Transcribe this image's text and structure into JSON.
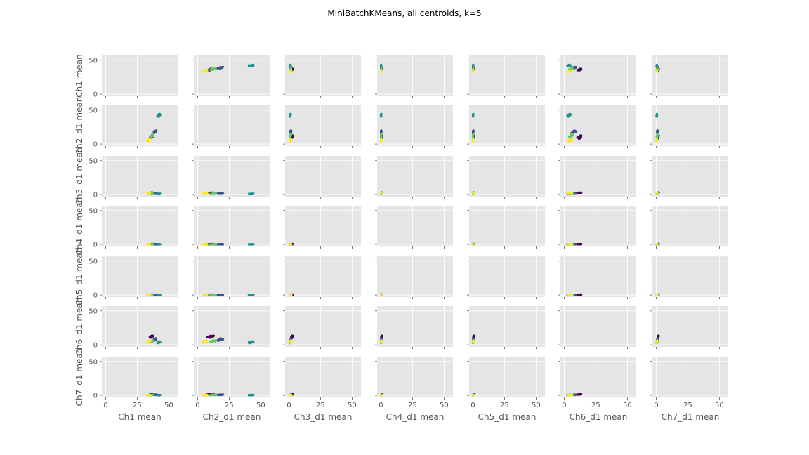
{
  "chart_data": {
    "type": "scatter",
    "layout": "pair-grid",
    "title": "MiniBatchKMeans, all centroids, k=5",
    "variables": [
      "Ch1 mean",
      "Ch2_d1 mean",
      "Ch3_d1 mean",
      "Ch4_d1 mean",
      "Ch5_d1 mean",
      "Ch6_d1 mean",
      "Ch7_d1 mean"
    ],
    "axis_range": [
      -3,
      57
    ],
    "ticks": [
      0,
      25,
      50
    ],
    "y_ticks": [
      0,
      50
    ],
    "grid": true,
    "colormap": [
      "#440154",
      "#3b528b",
      "#21918c",
      "#5ec962",
      "#fde725"
    ],
    "diagonal": "empty",
    "clusters": [
      {
        "Ch1 mean": 36,
        "Ch2_d1 mean": 10,
        "Ch3_d1 mean": 2.5,
        "Ch4_d1 mean": 0.5,
        "Ch5_d1 mean": 0.5,
        "Ch6_d1 mean": 12,
        "Ch7_d1 mean": 1.5
      },
      {
        "Ch1 mean": 39,
        "Ch2_d1 mean": 18,
        "Ch3_d1 mean": 1.5,
        "Ch4_d1 mean": 0.3,
        "Ch5_d1 mean": 0.3,
        "Ch6_d1 mean": 8,
        "Ch7_d1 mean": 1.0
      },
      {
        "Ch1 mean": 42,
        "Ch2_d1 mean": 42,
        "Ch3_d1 mean": 1.0,
        "Ch4_d1 mean": 0.2,
        "Ch5_d1 mean": 0.2,
        "Ch6_d1 mean": 4,
        "Ch7_d1 mean": 0.5
      },
      {
        "Ch1 mean": 37,
        "Ch2_d1 mean": 12,
        "Ch3_d1 mean": 1.2,
        "Ch4_d1 mean": 0.2,
        "Ch5_d1 mean": 0.2,
        "Ch6_d1 mean": 5,
        "Ch7_d1 mean": 0.8
      },
      {
        "Ch1 mean": 34,
        "Ch2_d1 mean": 6,
        "Ch3_d1 mean": 1.5,
        "Ch4_d1 mean": 0.3,
        "Ch5_d1 mean": 0.3,
        "Ch6_d1 mean": 5,
        "Ch7_d1 mean": 0.5
      }
    ]
  }
}
